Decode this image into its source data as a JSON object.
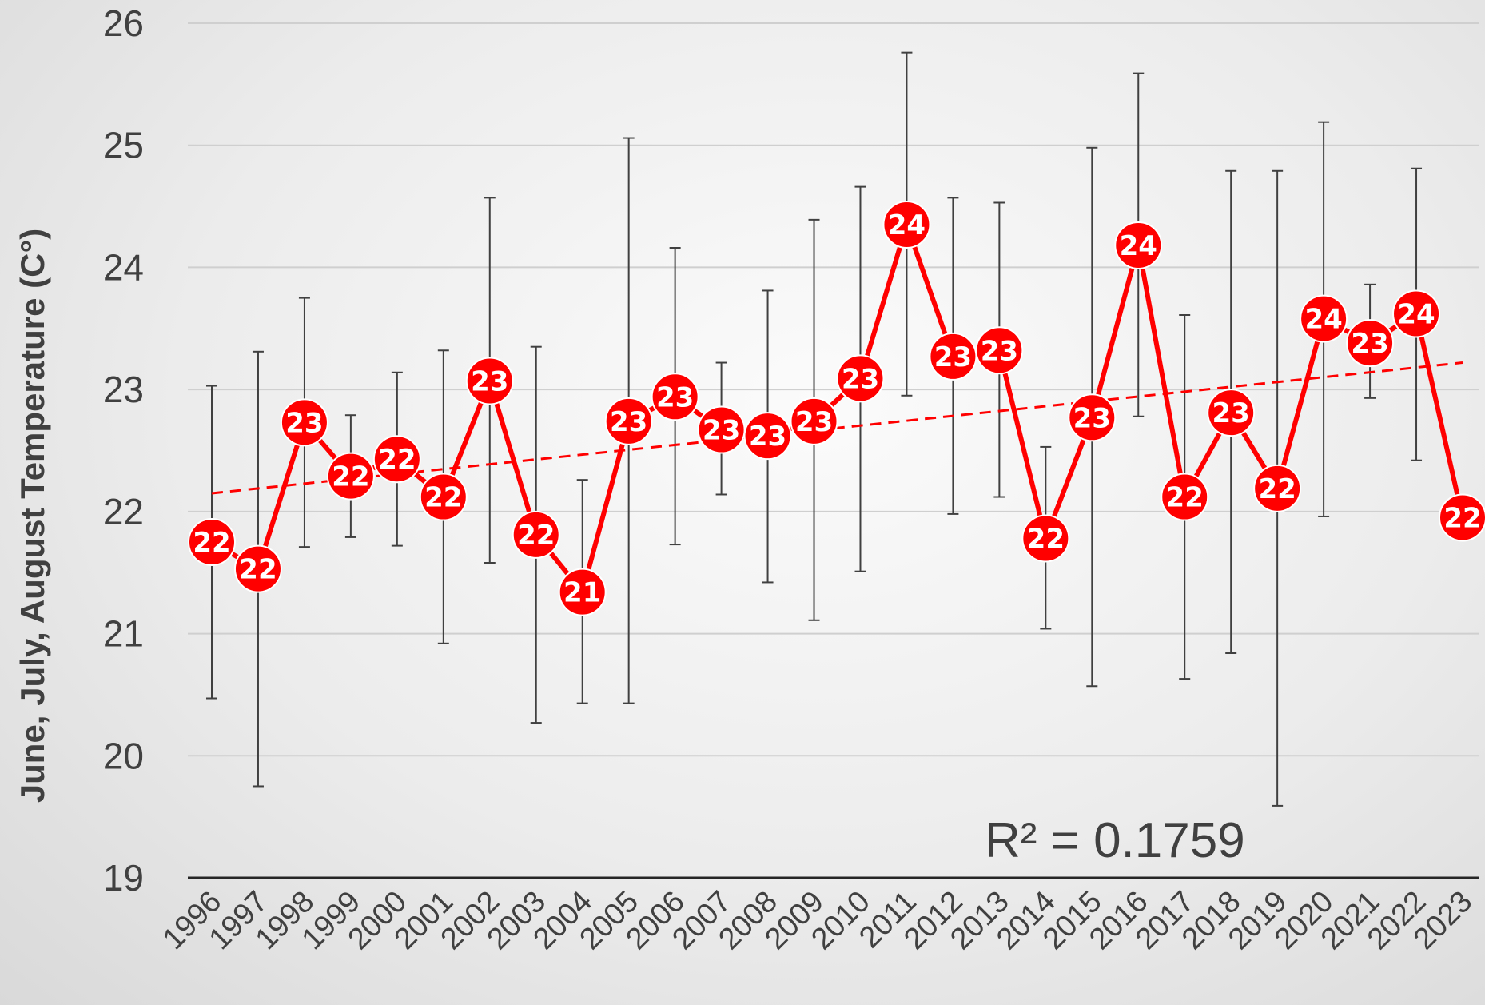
{
  "chart_data": {
    "type": "line",
    "ylabel": "June, July, August Temperature (C°)",
    "xlabel": "",
    "title": "",
    "ylim": [
      19,
      26
    ],
    "yticks": [
      "19",
      "20",
      "21",
      "22",
      "23",
      "24",
      "25",
      "26"
    ],
    "grid": true,
    "legend": "none",
    "categories": [
      "1996",
      "1997",
      "1998",
      "1999",
      "2000",
      "2001",
      "2002",
      "2003",
      "2004",
      "2005",
      "2006",
      "2007",
      "2008",
      "2009",
      "2010",
      "2011",
      "2012",
      "2013",
      "2014",
      "2015",
      "2016",
      "2017",
      "2018",
      "2019",
      "2020",
      "2021",
      "2022",
      "2023"
    ],
    "series": [
      {
        "values": [
          21.75,
          21.53,
          22.73,
          22.29,
          22.43,
          22.12,
          23.07,
          21.81,
          21.34,
          22.74,
          22.94,
          22.67,
          22.62,
          22.74,
          23.09,
          24.35,
          23.27,
          23.32,
          21.78,
          22.77,
          24.18,
          22.12,
          22.81,
          22.19,
          23.58,
          23.38,
          23.62,
          21.95
        ],
        "labels": [
          "22",
          "22",
          "23",
          "22",
          "22",
          "22",
          "23",
          "22",
          "21",
          "23",
          "23",
          "23",
          "23",
          "23",
          "23",
          "24",
          "23",
          "23",
          "22",
          "23",
          "24",
          "22",
          "23",
          "22",
          "24",
          "23",
          "24",
          "22"
        ],
        "error_low": [
          20.47,
          19.75,
          21.71,
          21.79,
          21.72,
          20.92,
          21.58,
          20.27,
          20.43,
          20.43,
          21.73,
          22.14,
          21.42,
          21.11,
          21.51,
          22.95,
          21.98,
          22.12,
          21.04,
          20.57,
          22.78,
          20.63,
          20.84,
          19.59,
          21.96,
          22.93,
          22.42,
          null
        ],
        "error_high": [
          23.03,
          23.31,
          23.75,
          22.79,
          23.14,
          23.32,
          24.57,
          23.35,
          22.26,
          25.06,
          24.16,
          23.22,
          23.81,
          24.39,
          24.66,
          25.76,
          24.57,
          24.53,
          22.53,
          24.98,
          25.59,
          23.61,
          24.79,
          24.79,
          25.19,
          23.86,
          24.81,
          null
        ]
      }
    ],
    "trendline": {
      "start": 22.15,
      "end": 23.22,
      "style": "dashed"
    },
    "annotation": "R² = 0.1759",
    "colors": {
      "series": "#ff0000",
      "marker_text": "#ffffff",
      "error_bar": "#404040",
      "grid": "#cfcfcf",
      "axis": "#262626"
    }
  }
}
